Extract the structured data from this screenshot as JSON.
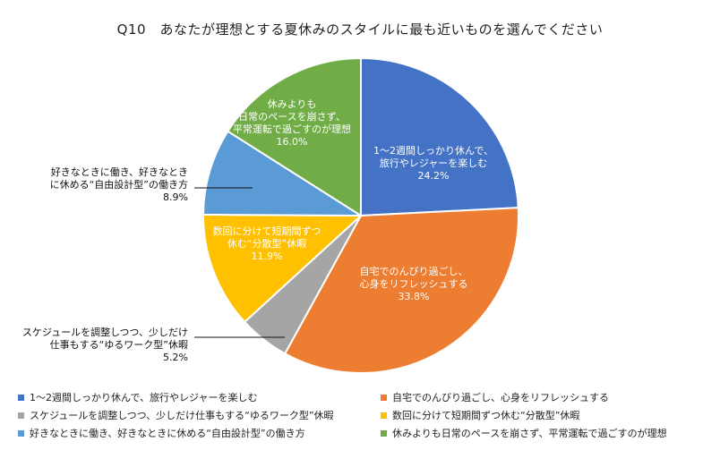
{
  "chart_data": {
    "type": "pie",
    "title": "Q10　あなたが理想とする夏休みのスタイルに最も近いものを選んでください",
    "slices": [
      {
        "label": "1〜2週間しっかり休んで、旅行やレジャーを楽しむ",
        "label_lines": [
          "1〜2週間しっかり休んで、",
          "旅行やレジャーを楽しむ"
        ],
        "value": 24.2,
        "value_text": "24.2%",
        "color": "#4472C4",
        "label_color": "#ffffff"
      },
      {
        "label": "自宅でのんびり過ごし、心身をリフレッシュする",
        "label_lines": [
          "自宅でのんびり過ごし、",
          "心身をリフレッシュする"
        ],
        "value": 33.8,
        "value_text": "33.8%",
        "color": "#ED7D31",
        "label_color": "#ffffff"
      },
      {
        "label": "スケジュールを調整しつつ、少しだけ仕事もする“ゆるワーク型”休暇",
        "label_lines": [
          "スケジュールを調整しつつ、少しだけ",
          "仕事もする“ゆるワーク型”休暇"
        ],
        "value": 5.2,
        "value_text": "5.2%",
        "color": "#A5A5A5",
        "label_color": "#111111"
      },
      {
        "label": "数回に分けて短期間ずつ休む“分散型”休暇",
        "label_lines": [
          "数回に分けて短期間ずつ",
          "休む“分散型”休暇"
        ],
        "value": 11.9,
        "value_text": "11.9%",
        "color": "#FFC000",
        "label_color": "#ffffff"
      },
      {
        "label": "好きなときに働き、好きなときに休める“自由設計型”の働き方",
        "label_lines": [
          "好きなときに働き、好きなとき",
          "に休める“自由設計型”の働き方"
        ],
        "value": 8.9,
        "value_text": "8.9%",
        "color": "#5B9BD5",
        "label_color": "#111111"
      },
      {
        "label": "休みよりも日常のペースを崩さず、平常運転で過ごすのが理想",
        "label_lines": [
          "休みよりも",
          "日常のペースを崩さず、",
          "平常運転で過ごすのが理想"
        ],
        "value": 16.0,
        "value_text": "16.0%",
        "color": "#70AD47",
        "label_color": "#ffffff"
      }
    ],
    "legend_position": "bottom"
  }
}
